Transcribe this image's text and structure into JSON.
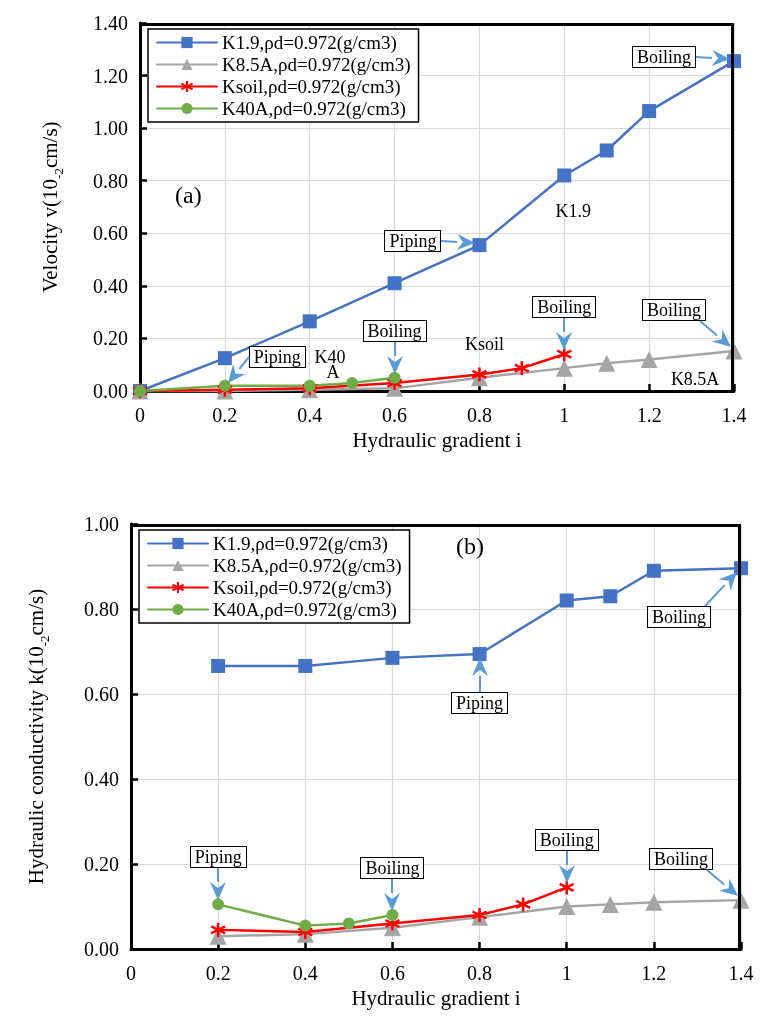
{
  "chart_data": [
    {
      "type": "line",
      "title": "(a)",
      "xlabel": "Hydraulic gradient i",
      "ylabel": "Velocity v(10$^{-2}$cm/s)",
      "xlim": [
        0,
        1.4
      ],
      "xticks": [
        0,
        0.2,
        0.4,
        0.6,
        0.8,
        1,
        1.2,
        1.4
      ],
      "ylim": [
        0,
        1.4
      ],
      "yticks": [
        {
          "value": 0,
          "label": "0.00"
        },
        {
          "value": 0.2,
          "label": "0.20"
        },
        {
          "value": 0.4,
          "label": "0.40"
        },
        {
          "value": 0.6,
          "label": "0.60"
        },
        {
          "value": 0.8,
          "label": "0.80"
        },
        {
          "value": 1,
          "label": "1.00"
        },
        {
          "value": 1.2,
          "label": "1.20"
        },
        {
          "value": 1.4,
          "label": "1.40"
        }
      ],
      "grid": true,
      "legend": "top left",
      "series": [
        {
          "name": "K1.9,ρd=0.972(g/cm3)",
          "color": "#4472c4",
          "marker": "square",
          "x": [
            0,
            0.2,
            0.4,
            0.6,
            0.8,
            1,
            1.1,
            1.2,
            1.4
          ],
          "values": [
            0,
            0.125,
            0.265,
            0.41,
            0.555,
            0.82,
            0.915,
            1.065,
            1.255
          ]
        },
        {
          "name": "K8.5A,ρd=0.972(g/cm3)",
          "color": "#a5a5a5",
          "marker": "triangle",
          "x": [
            0,
            0.2,
            0.4,
            0.6,
            0.8,
            1,
            1.1,
            1.2,
            1.4
          ],
          "values": [
            0,
            0,
            0.005,
            0.01,
            0.05,
            0.087,
            0.106,
            0.12,
            0.152
          ]
        },
        {
          "name": "Ksoil,ρd=0.972(g/cm3)",
          "color": "#ff0000",
          "marker": "cross",
          "x": [
            0,
            0.2,
            0.4,
            0.6,
            0.8,
            0.9,
            1
          ],
          "values": [
            0,
            0.005,
            0.01,
            0.03,
            0.063,
            0.087,
            0.14
          ]
        },
        {
          "name": "K40A,ρd=0.972(g/cm3)",
          "color": "#70ad47",
          "marker": "circle",
          "x": [
            0,
            0.2,
            0.4,
            0.5,
            0.6
          ],
          "values": [
            0,
            0.02,
            0.02,
            0.03,
            0.05
          ]
        }
      ],
      "annotations": [
        {
          "text": "Boiling",
          "x": 1.4,
          "y": 1.255
        },
        {
          "text": "Piping",
          "x": 0.8,
          "y": 0.555
        },
        {
          "text": "Piping",
          "x": 0.2,
          "y": 0.02
        },
        {
          "text": "Boiling",
          "x": 0.6,
          "y": 0.05
        },
        {
          "text": "Boiling",
          "x": 1,
          "y": 0.14
        },
        {
          "text": "Boiling",
          "x": 1.4,
          "y": 0.152
        },
        "K1.9",
        "K40",
        "A",
        "Ksoil",
        "K8.5A"
      ]
    },
    {
      "type": "line",
      "title": "(b)",
      "xlabel": "Hydraulic gradient i",
      "ylabel": "Hydraulic conductivity k(10$^{-2}$cm/s)",
      "xlim": [
        0,
        1.4
      ],
      "xticks": [
        0,
        0.2,
        0.4,
        0.6,
        0.8,
        1,
        1.2,
        1.4
      ],
      "ylim": [
        0,
        1
      ],
      "yticks": [
        {
          "value": 0,
          "label": "0.00"
        },
        {
          "value": 0.2,
          "label": "0.20"
        },
        {
          "value": 0.4,
          "label": "0.40"
        },
        {
          "value": 0.6,
          "label": "0.60"
        },
        {
          "value": 0.8,
          "label": "0.80"
        },
        {
          "value": 1,
          "label": "1.00"
        }
      ],
      "grid": true,
      "legend": "top left",
      "series": [
        {
          "name": "K1.9,ρd=0.972(g/cm3)",
          "color": "#4472c4",
          "marker": "square",
          "x": [
            0.2,
            0.4,
            0.6,
            0.8,
            1,
            1.1,
            1.2,
            1.4
          ],
          "values": [
            0.666,
            0.666,
            0.685,
            0.694,
            0.82,
            0.83,
            0.89,
            0.896
          ]
        },
        {
          "name": "K8.5A,ρd=0.972(g/cm3)",
          "color": "#a5a5a5",
          "marker": "triangle",
          "x": [
            0.2,
            0.4,
            0.6,
            0.8,
            1,
            1.1,
            1.2,
            1.4
          ],
          "values": [
            0.03,
            0.035,
            0.05,
            0.075,
            0.1,
            0.105,
            0.11,
            0.115
          ]
        },
        {
          "name": "Ksoil,ρd=0.972(g/cm3)",
          "color": "#ff0000",
          "marker": "cross",
          "x": [
            0.2,
            0.4,
            0.6,
            0.8,
            0.9,
            1
          ],
          "values": [
            0.045,
            0.04,
            0.06,
            0.08,
            0.105,
            0.145
          ]
        },
        {
          "name": "K40A,ρd=0.972(g/cm3)",
          "color": "#70ad47",
          "marker": "circle",
          "x": [
            0.2,
            0.4,
            0.5,
            0.6
          ],
          "values": [
            0.105,
            0.055,
            0.06,
            0.08
          ]
        }
      ],
      "annotations": [
        {
          "text": "Piping",
          "x": 0.8,
          "y": 0.694
        },
        {
          "text": "Boiling",
          "x": 1.4,
          "y": 0.896
        },
        {
          "text": "Piping",
          "x": 0.2,
          "y": 0.105
        },
        {
          "text": "Boiling",
          "x": 0.6,
          "y": 0.08
        },
        {
          "text": "Boiling",
          "x": 1,
          "y": 0.145
        },
        {
          "text": "Boiling",
          "x": 1.4,
          "y": 0.115
        }
      ]
    }
  ]
}
